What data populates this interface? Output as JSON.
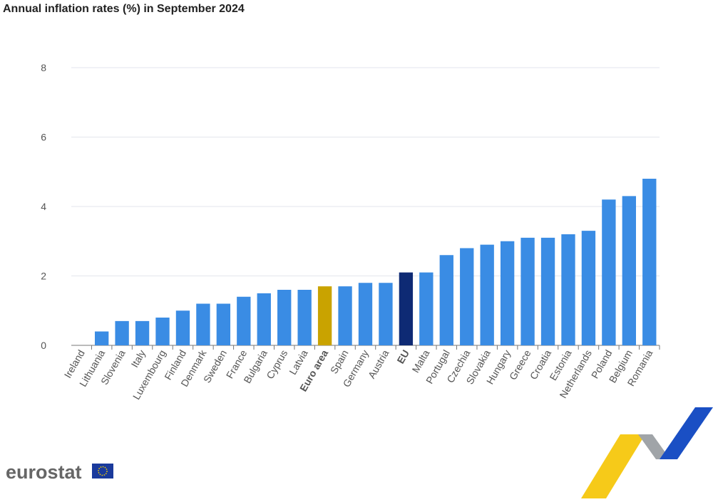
{
  "chart_data": {
    "type": "bar",
    "title": "Annual inflation rates (%) in September 2024",
    "categories": [
      "Ireland",
      "Lithuania",
      "Slovenia",
      "Italy",
      "Luxembourg",
      "Finland",
      "Denmark",
      "Sweden",
      "France",
      "Bulgaria",
      "Cyprus",
      "Latvia",
      "Euro area",
      "Spain",
      "Germany",
      "Austria",
      "EU",
      "Malta",
      "Portugal",
      "Czechia",
      "Slovakia",
      "Hungary",
      "Greece",
      "Croatia",
      "Estonia",
      "Netherlands",
      "Poland",
      "Belgium",
      "Romania"
    ],
    "values": [
      0.0,
      0.4,
      0.7,
      0.7,
      0.8,
      1.0,
      1.2,
      1.2,
      1.4,
      1.5,
      1.6,
      1.6,
      1.7,
      1.7,
      1.8,
      1.8,
      2.1,
      2.1,
      2.6,
      2.8,
      2.9,
      3.0,
      3.1,
      3.1,
      3.2,
      3.3,
      4.2,
      4.3,
      4.8
    ],
    "color": "#3a8ce4",
    "colors": [
      "#3a8ce4",
      "#3a8ce4",
      "#3a8ce4",
      "#3a8ce4",
      "#3a8ce4",
      "#3a8ce4",
      "#3a8ce4",
      "#3a8ce4",
      "#3a8ce4",
      "#3a8ce4",
      "#3a8ce4",
      "#3a8ce4",
      "#c9a300",
      "#3a8ce4",
      "#3a8ce4",
      "#3a8ce4",
      "#0e2a74",
      "#3a8ce4",
      "#3a8ce4",
      "#3a8ce4",
      "#3a8ce4",
      "#3a8ce4",
      "#3a8ce4",
      "#3a8ce4",
      "#3a8ce4",
      "#3a8ce4",
      "#3a8ce4",
      "#3a8ce4",
      "#3a8ce4"
    ],
    "ylim": [
      0,
      8
    ],
    "yticks": [
      0,
      2,
      4,
      6,
      8
    ],
    "grid": true
  },
  "logo": "eurostat"
}
